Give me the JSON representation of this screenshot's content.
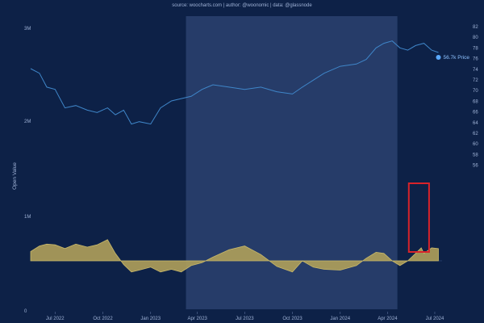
{
  "source_line": "source: woocharts.com | author: @woonomic | data: @glassnode",
  "chart_data": {
    "type": "line",
    "ylabel": "Open Value",
    "price_label": "56.7k Price",
    "colors": {
      "background": "#0d2147",
      "price_line": "#3f86c9",
      "price_dot": "#5aa9ff",
      "value_area": "#c9b96a",
      "value_area_fill": "#b0a05a",
      "highlight_band": "#2b4170",
      "annotation_box": "#d8232a"
    },
    "left_ticks": [
      "3M",
      "2M",
      "1M",
      "0"
    ],
    "right_ticks": [
      "82",
      "80",
      "78",
      "76",
      "74",
      "72",
      "70",
      "68",
      "66",
      "64",
      "62",
      "60",
      "58",
      "56"
    ],
    "x_tick_labels": [
      "Jul 2022",
      "Oct 2022",
      "Jan 2023",
      "Apr 2023",
      "Jul 2023",
      "Oct 2023",
      "Jan 2024",
      "Apr 2024",
      "Jul 2024"
    ],
    "x_tick_dates": [
      "2022-07-01",
      "2022-10-01",
      "2023-01-01",
      "2023-04-01",
      "2023-07-01",
      "2023-10-01",
      "2024-01-01",
      "2024-04-01",
      "2024-07-01"
    ],
    "x_range": [
      "2022-05-15",
      "2024-07-15"
    ],
    "highlight_range": [
      "2023-03-10",
      "2024-04-20"
    ],
    "annotation_range": [
      "2024-05-12",
      "2024-06-20"
    ],
    "value_ylim": [
      -0.5,
      3.2
    ],
    "price_ylim": [
      55,
      83
    ],
    "price_series": {
      "name": "Price",
      "points": [
        [
          "2022-05-15",
          76.0
        ],
        [
          "2022-06-01",
          75.0
        ],
        [
          "2022-06-15",
          72.0
        ],
        [
          "2022-07-01",
          71.5
        ],
        [
          "2022-07-20",
          67.5
        ],
        [
          "2022-08-10",
          68.0
        ],
        [
          "2022-09-01",
          67.0
        ],
        [
          "2022-09-20",
          66.5
        ],
        [
          "2022-10-10",
          67.5
        ],
        [
          "2022-10-25",
          66.0
        ],
        [
          "2022-11-10",
          67.0
        ],
        [
          "2022-11-25",
          64.0
        ],
        [
          "2022-12-10",
          64.5
        ],
        [
          "2023-01-01",
          64.0
        ],
        [
          "2023-01-20",
          67.5
        ],
        [
          "2023-02-10",
          69.0
        ],
        [
          "2023-03-01",
          69.5
        ],
        [
          "2023-03-20",
          70.0
        ],
        [
          "2023-04-10",
          71.5
        ],
        [
          "2023-05-01",
          72.5
        ],
        [
          "2023-06-01",
          72.0
        ],
        [
          "2023-07-01",
          71.5
        ],
        [
          "2023-08-01",
          72.0
        ],
        [
          "2023-09-01",
          71.0
        ],
        [
          "2023-10-01",
          70.5
        ],
        [
          "2023-10-20",
          72.0
        ],
        [
          "2023-11-10",
          73.5
        ],
        [
          "2023-12-01",
          75.0
        ],
        [
          "2024-01-01",
          76.5
        ],
        [
          "2024-02-01",
          77.0
        ],
        [
          "2024-02-20",
          78.0
        ],
        [
          "2024-03-10",
          80.5
        ],
        [
          "2024-03-25",
          81.5
        ],
        [
          "2024-04-10",
          82.0
        ],
        [
          "2024-04-25",
          80.5
        ],
        [
          "2024-05-10",
          80.0
        ],
        [
          "2024-05-25",
          81.0
        ],
        [
          "2024-06-10",
          81.5
        ],
        [
          "2024-06-25",
          80.0
        ],
        [
          "2024-07-08",
          79.5
        ]
      ]
    },
    "value_series": {
      "name": "Open Value",
      "points": [
        [
          "2022-05-15",
          1.1
        ],
        [
          "2022-06-01",
          1.25
        ],
        [
          "2022-06-15",
          1.3
        ],
        [
          "2022-07-01",
          1.28
        ],
        [
          "2022-07-20",
          1.18
        ],
        [
          "2022-08-10",
          1.3
        ],
        [
          "2022-09-01",
          1.22
        ],
        [
          "2022-09-20",
          1.28
        ],
        [
          "2022-10-10",
          1.42
        ],
        [
          "2022-10-25",
          1.05
        ],
        [
          "2022-11-10",
          0.75
        ],
        [
          "2022-11-25",
          0.55
        ],
        [
          "2022-12-10",
          0.6
        ],
        [
          "2023-01-01",
          0.68
        ],
        [
          "2023-01-20",
          0.55
        ],
        [
          "2023-02-10",
          0.62
        ],
        [
          "2023-03-01",
          0.55
        ],
        [
          "2023-03-20",
          0.72
        ],
        [
          "2023-04-10",
          0.8
        ],
        [
          "2023-05-01",
          0.95
        ],
        [
          "2023-06-01",
          1.15
        ],
        [
          "2023-07-01",
          1.25
        ],
        [
          "2023-08-01",
          1.02
        ],
        [
          "2023-09-01",
          0.7
        ],
        [
          "2023-10-01",
          0.55
        ],
        [
          "2023-10-20",
          0.85
        ],
        [
          "2023-11-10",
          0.68
        ],
        [
          "2023-12-01",
          0.62
        ],
        [
          "2024-01-01",
          0.6
        ],
        [
          "2024-02-01",
          0.72
        ],
        [
          "2024-02-20",
          0.92
        ],
        [
          "2024-03-10",
          1.08
        ],
        [
          "2024-03-25",
          1.05
        ],
        [
          "2024-04-10",
          0.85
        ],
        [
          "2024-04-25",
          0.72
        ],
        [
          "2024-05-10",
          0.85
        ],
        [
          "2024-05-25",
          1.05
        ],
        [
          "2024-06-05",
          1.2
        ],
        [
          "2024-06-10",
          1.05
        ],
        [
          "2024-06-25",
          1.2
        ],
        [
          "2024-07-08",
          1.18
        ]
      ]
    }
  }
}
